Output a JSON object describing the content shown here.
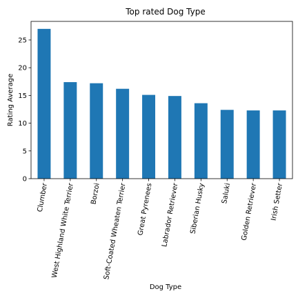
{
  "chart_data": {
    "type": "bar",
    "title": "Top rated Dog Type",
    "xlabel": "Dog Type",
    "ylabel": "Rating Average",
    "categories": [
      "Clumber",
      "West Highland White Terrier",
      "Borzoi",
      "Soft-Coated Wheaten Terrier",
      "Great Pyrenees",
      "Labrador Retriever",
      "Siberian Husky",
      "Saluki",
      "Golden Retriever",
      "Irish Setter"
    ],
    "values": [
      27.0,
      17.4,
      17.2,
      16.2,
      15.1,
      14.9,
      13.6,
      12.4,
      12.3,
      12.3
    ],
    "ylim": [
      0,
      28.35
    ],
    "yticks": [
      0,
      5,
      10,
      15,
      20,
      25
    ],
    "grid": false,
    "bar_color": "#1f77b4",
    "label_rotation_deg": -80
  }
}
